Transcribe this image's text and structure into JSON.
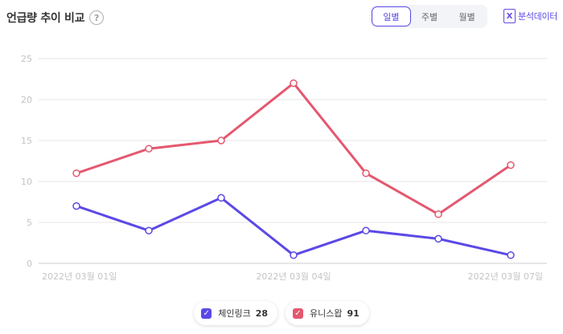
{
  "header": {
    "title": "언급량 추이 비교",
    "help_icon": "?"
  },
  "period_toggle": {
    "options": [
      "일별",
      "주별",
      "월별"
    ],
    "selected": "일별"
  },
  "analysis_data": {
    "icon": "excel-icon",
    "icon_glyph": "X",
    "label": "분석데이터"
  },
  "colors": {
    "accent": "#5b49e6",
    "series_1": "#5b49e6",
    "series_2": "#e4586f"
  },
  "chart_data": {
    "type": "line",
    "categories": [
      "2022년 03월 01일",
      "",
      "",
      "2022년 03월 04일",
      "",
      "",
      "2022년 03월 07일"
    ],
    "ylim": [
      0,
      25
    ],
    "yticks": [
      0,
      5,
      10,
      15,
      20,
      25
    ],
    "grid": true,
    "legend_placement": "bottom-center",
    "series": [
      {
        "name": "체인링크",
        "count": "28",
        "values": [
          7,
          4,
          8,
          1,
          4,
          3,
          1
        ],
        "color": "#5b49e6"
      },
      {
        "name": "유니스왑",
        "count": "91",
        "values": [
          11,
          14,
          15,
          22,
          11,
          6,
          12
        ],
        "color": "#e4586f"
      }
    ]
  }
}
